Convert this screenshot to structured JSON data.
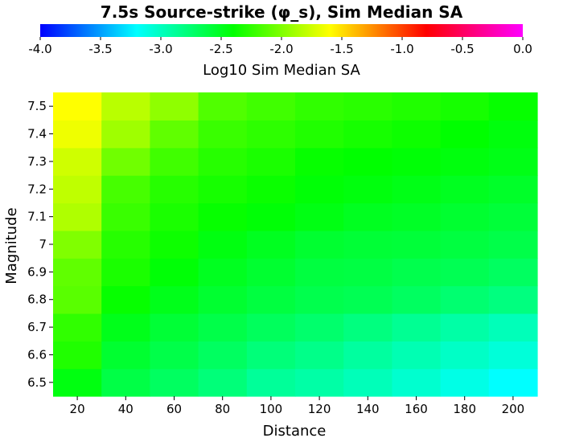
{
  "chart_data": {
    "type": "heatmap",
    "title": "7.5s Source-strike (φ_s), Sim Median SA",
    "xlabel": "Distance",
    "ylabel": "Magnitude",
    "x": [
      20,
      40,
      60,
      80,
      100,
      120,
      140,
      160,
      180,
      200
    ],
    "y": [
      6.5,
      6.6,
      6.7,
      6.8,
      6.9,
      7.0,
      7.1,
      7.2,
      7.3,
      7.4,
      7.5
    ],
    "x_tick_labels": [
      "20",
      "40",
      "60",
      "80",
      "100",
      "120",
      "140",
      "160",
      "180",
      "200"
    ],
    "y_tick_labels": [
      "6.5",
      "6.6",
      "6.7",
      "6.8",
      "6.9",
      "7",
      "7.1",
      "7.2",
      "7.3",
      "7.4",
      "7.5"
    ],
    "xlim": [
      10,
      210
    ],
    "ylim": [
      6.45,
      7.55
    ],
    "colorbar": {
      "label": "Log10 Sim Median SA",
      "range": [
        -4.0,
        0.0
      ],
      "tick_values": [
        -4.0,
        -3.5,
        -3.0,
        -2.5,
        -2.0,
        -1.5,
        -1.0,
        -0.5,
        0.0
      ],
      "tick_labels": [
        "-4.0",
        "-3.5",
        "-3.0",
        "-2.5",
        "-2.0",
        "-1.5",
        "-1.0",
        "-0.5",
        "0.0"
      ],
      "colors": [
        "#0000ff",
        "#00ffff",
        "#00ff00",
        "#ffff00",
        "#ff0000",
        "#ff00ff"
      ]
    },
    "z_note": "rows ordered from bottom (M6.5) to top (M7.5), columns by distance 20..200",
    "z": [
      [
        -2.45,
        -2.62,
        -2.7,
        -2.78,
        -2.88,
        -2.92,
        -2.98,
        -3.05,
        -3.12,
        -3.2
      ],
      [
        -2.3,
        -2.55,
        -2.63,
        -2.7,
        -2.78,
        -2.83,
        -2.9,
        -2.96,
        -3.02,
        -3.08
      ],
      [
        -2.25,
        -2.48,
        -2.57,
        -2.63,
        -2.69,
        -2.74,
        -2.8,
        -2.86,
        -2.92,
        -2.98
      ],
      [
        -2.12,
        -2.38,
        -2.48,
        -2.55,
        -2.6,
        -2.64,
        -2.66,
        -2.7,
        -2.75,
        -2.8
      ],
      [
        -2.1,
        -2.32,
        -2.42,
        -2.5,
        -2.55,
        -2.6,
        -2.61,
        -2.64,
        -2.66,
        -2.7
      ],
      [
        -2.0,
        -2.28,
        -2.36,
        -2.45,
        -2.5,
        -2.55,
        -2.57,
        -2.58,
        -2.6,
        -2.63
      ],
      [
        -1.85,
        -2.22,
        -2.32,
        -2.38,
        -2.42,
        -2.46,
        -2.5,
        -2.52,
        -2.55,
        -2.58
      ],
      [
        -1.8,
        -2.18,
        -2.28,
        -2.33,
        -2.37,
        -2.42,
        -2.44,
        -2.47,
        -2.5,
        -2.53
      ],
      [
        -1.75,
        -2.05,
        -2.2,
        -2.28,
        -2.32,
        -2.38,
        -2.4,
        -2.42,
        -2.44,
        -2.47
      ],
      [
        -1.65,
        -1.9,
        -2.1,
        -2.22,
        -2.26,
        -2.3,
        -2.33,
        -2.36,
        -2.4,
        -2.44
      ],
      [
        -1.6,
        -1.82,
        -1.95,
        -2.15,
        -2.2,
        -2.25,
        -2.27,
        -2.3,
        -2.33,
        -2.38
      ]
    ]
  }
}
